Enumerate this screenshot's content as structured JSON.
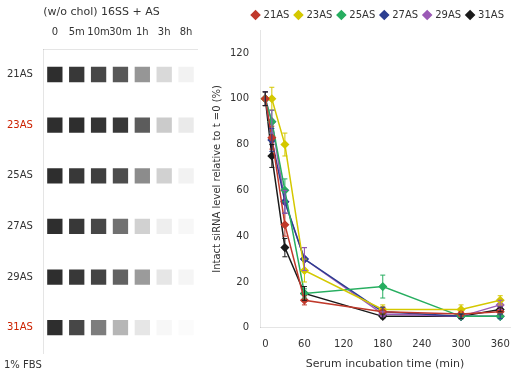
{
  "chart_data": [
    {
      "type": "heatmap",
      "title": "(w/o chol) 16SS + AS",
      "categories": [
        "0",
        "5m",
        "10m",
        "30m",
        "1h",
        "3h",
        "8h"
      ],
      "series": [
        {
          "name": "21AS",
          "color": "#333333",
          "values": [
            1.0,
            0.95,
            0.88,
            0.8,
            0.5,
            0.18,
            0.06
          ]
        },
        {
          "name": "23AS",
          "color": "#cc2200",
          "values": [
            1.0,
            1.0,
            0.97,
            0.95,
            0.78,
            0.25,
            0.1
          ]
        },
        {
          "name": "25AS",
          "color": "#333333",
          "values": [
            1.0,
            0.95,
            0.92,
            0.85,
            0.55,
            0.22,
            0.06
          ]
        },
        {
          "name": "27AS",
          "color": "#333333",
          "values": [
            1.0,
            0.95,
            0.88,
            0.68,
            0.22,
            0.08,
            0.04
          ]
        },
        {
          "name": "29AS",
          "color": "#333333",
          "values": [
            1.0,
            0.95,
            0.9,
            0.75,
            0.48,
            0.12,
            0.05
          ]
        },
        {
          "name": "31AS",
          "color": "#cc2200",
          "values": [
            1.0,
            0.88,
            0.62,
            0.35,
            0.12,
            0.04,
            0.02
          ]
        }
      ],
      "annotations": [
        "1% FBS"
      ],
      "grid": false
    },
    {
      "type": "line",
      "x": [
        0,
        10,
        30,
        60,
        180,
        300,
        360
      ],
      "series": [
        {
          "name": "21AS",
          "color": "#c0392b",
          "marker": "diamond",
          "values": [
            100,
            83,
            45,
            12,
            7,
            6,
            7
          ],
          "yerr": [
            3,
            5,
            5,
            2,
            2,
            1,
            1
          ]
        },
        {
          "name": "23AS",
          "color": "#d4c800",
          "marker": "diamond",
          "values": [
            100,
            100,
            80,
            25,
            8,
            8,
            12
          ],
          "yerr": [
            3,
            5,
            5,
            5,
            2,
            2,
            2
          ]
        },
        {
          "name": "25AS",
          "color": "#27ae60",
          "marker": "diamond",
          "values": [
            100,
            90,
            60,
            15,
            18,
            5,
            5
          ],
          "yerr": [
            3,
            5,
            5,
            2,
            5,
            1,
            1
          ]
        },
        {
          "name": "27AS",
          "color": "#2c3e90",
          "marker": "diamond",
          "values": [
            100,
            82,
            55,
            30,
            7,
            5,
            5
          ],
          "yerr": [
            3,
            5,
            5,
            5,
            2,
            1,
            1
          ]
        },
        {
          "name": "29AS",
          "color": "#9b59b6",
          "marker": "diamond",
          "values": [
            100,
            90,
            55,
            30,
            6,
            5,
            10
          ],
          "yerr": [
            3,
            5,
            5,
            5,
            1,
            1,
            2
          ]
        },
        {
          "name": "31AS",
          "color": "#1a1a1a",
          "marker": "diamond",
          "values": [
            100,
            75,
            35,
            15,
            5,
            5,
            8
          ],
          "yerr": [
            3,
            5,
            4,
            3,
            1,
            1,
            1
          ]
        }
      ],
      "xlabel": "Serum incubation time (min)",
      "ylabel": "Intact siRNA level relative to t =0 (%)",
      "xlim": [
        -8,
        375
      ],
      "xticks": [
        0,
        60,
        120,
        180,
        240,
        300,
        360
      ],
      "ylim": [
        0,
        130
      ],
      "yticks": [
        0,
        20,
        40,
        60,
        80,
        100,
        120
      ],
      "grid": false,
      "legend": "upper right"
    }
  ]
}
